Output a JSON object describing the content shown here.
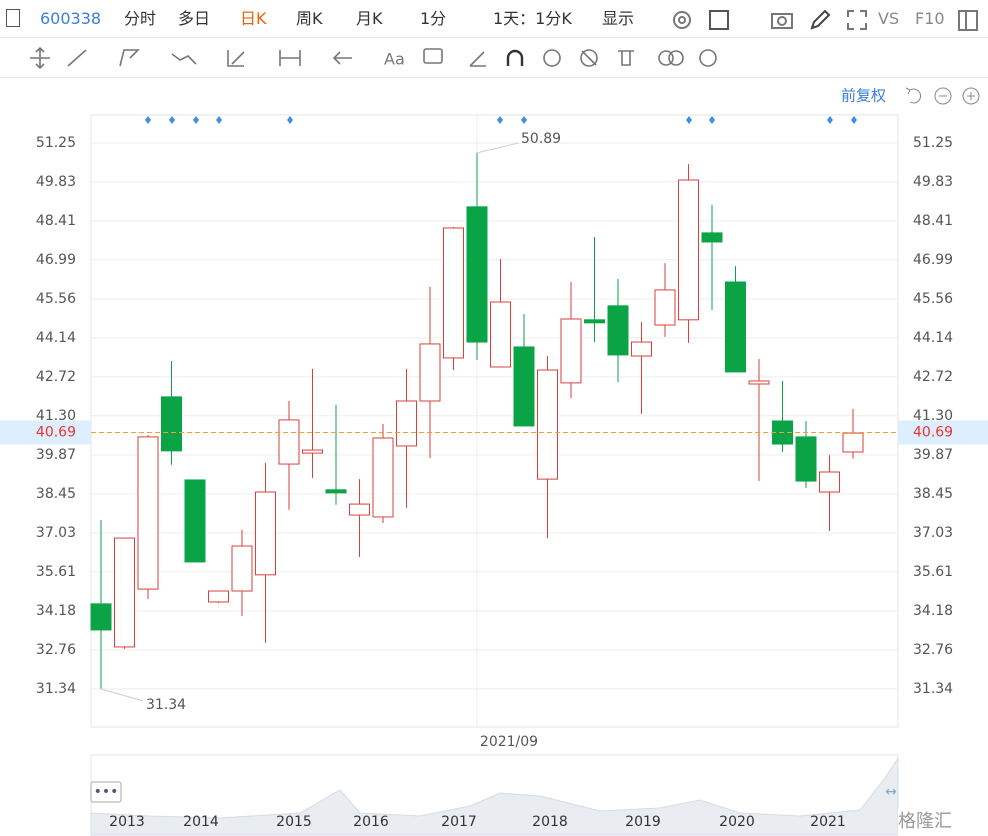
{
  "toolbar": {
    "code": "600338",
    "items": [
      "分时",
      "多日",
      "日K",
      "周K",
      "月K",
      "1分",
      "1天：1分K",
      "显示"
    ],
    "vs": "VS",
    "f10": "F10"
  },
  "adjust": "前复权",
  "watermark": "格隆汇",
  "chart_data": {
    "type": "candlestick",
    "open": [
      34.44,
      32.87,
      34.98,
      41.99,
      38.96,
      34.51,
      34.91,
      35.5,
      39.54,
      39.94,
      38.6,
      37.68,
      37.61,
      40.2,
      41.84,
      43.41,
      48.92,
      43.08,
      43.81,
      38.99,
      42.5,
      44.8,
      45.31,
      43.48,
      44.61,
      44.8,
      47.97,
      46.18,
      42.46,
      41.11,
      40.53,
      38.52,
      39.98
    ],
    "high": [
      37.5,
      36.84,
      40.6,
      43.3,
      38.96,
      34.91,
      37.14,
      39.58,
      41.84,
      43.01,
      41.7,
      38.99,
      41.0,
      43.01,
      46.0,
      48.19,
      50.89,
      47.02,
      45.01,
      43.48,
      46.18,
      47.82,
      46.29,
      44.72,
      46.87,
      50.48,
      48.99,
      46.76,
      43.37,
      42.57,
      41.11,
      39.87,
      41.55
    ],
    "low": [
      31.34,
      32.8,
      34.62,
      39.51,
      35.97,
      34.47,
      34.0,
      33.02,
      37.87,
      39.03,
      38.05,
      36.15,
      37.39,
      37.94,
      39.76,
      42.97,
      43.34,
      43.08,
      40.93,
      36.84,
      41.95,
      43.99,
      42.53,
      41.37,
      44.18,
      43.96,
      45.16,
      42.9,
      38.92,
      39.98,
      38.67,
      37.1,
      39.73
    ],
    "close": [
      33.49,
      36.84,
      40.53,
      40.02,
      35.97,
      34.91,
      36.55,
      38.52,
      41.15,
      40.05,
      38.49,
      38.08,
      40.49,
      41.84,
      43.92,
      48.15,
      43.99,
      45.45,
      40.93,
      42.97,
      44.83,
      44.69,
      43.52,
      43.99,
      45.89,
      49.9,
      47.64,
      42.9,
      42.57,
      40.27,
      38.92,
      39.25,
      40.67
    ],
    "up_color": "#d9413c",
    "down_color": "#0aa447",
    "ylim": [
      29.95,
      52.27
    ],
    "yticks": [
      51.25,
      49.83,
      48.41,
      46.99,
      45.56,
      44.14,
      42.72,
      {
        "value": 41.3,
        "label": "41.30"
      },
      39.87,
      38.45,
      37.03,
      35.61,
      34.18,
      32.76,
      31.34
    ],
    "grid": true,
    "x_label": "2021/09",
    "current_price": 40.69,
    "high_label": 50.89,
    "low_label": 31.34,
    "navigator_years": [
      "2013",
      "2014",
      "2015",
      "2016",
      "2017",
      "2018",
      "2019",
      "2020",
      "2021"
    ]
  }
}
